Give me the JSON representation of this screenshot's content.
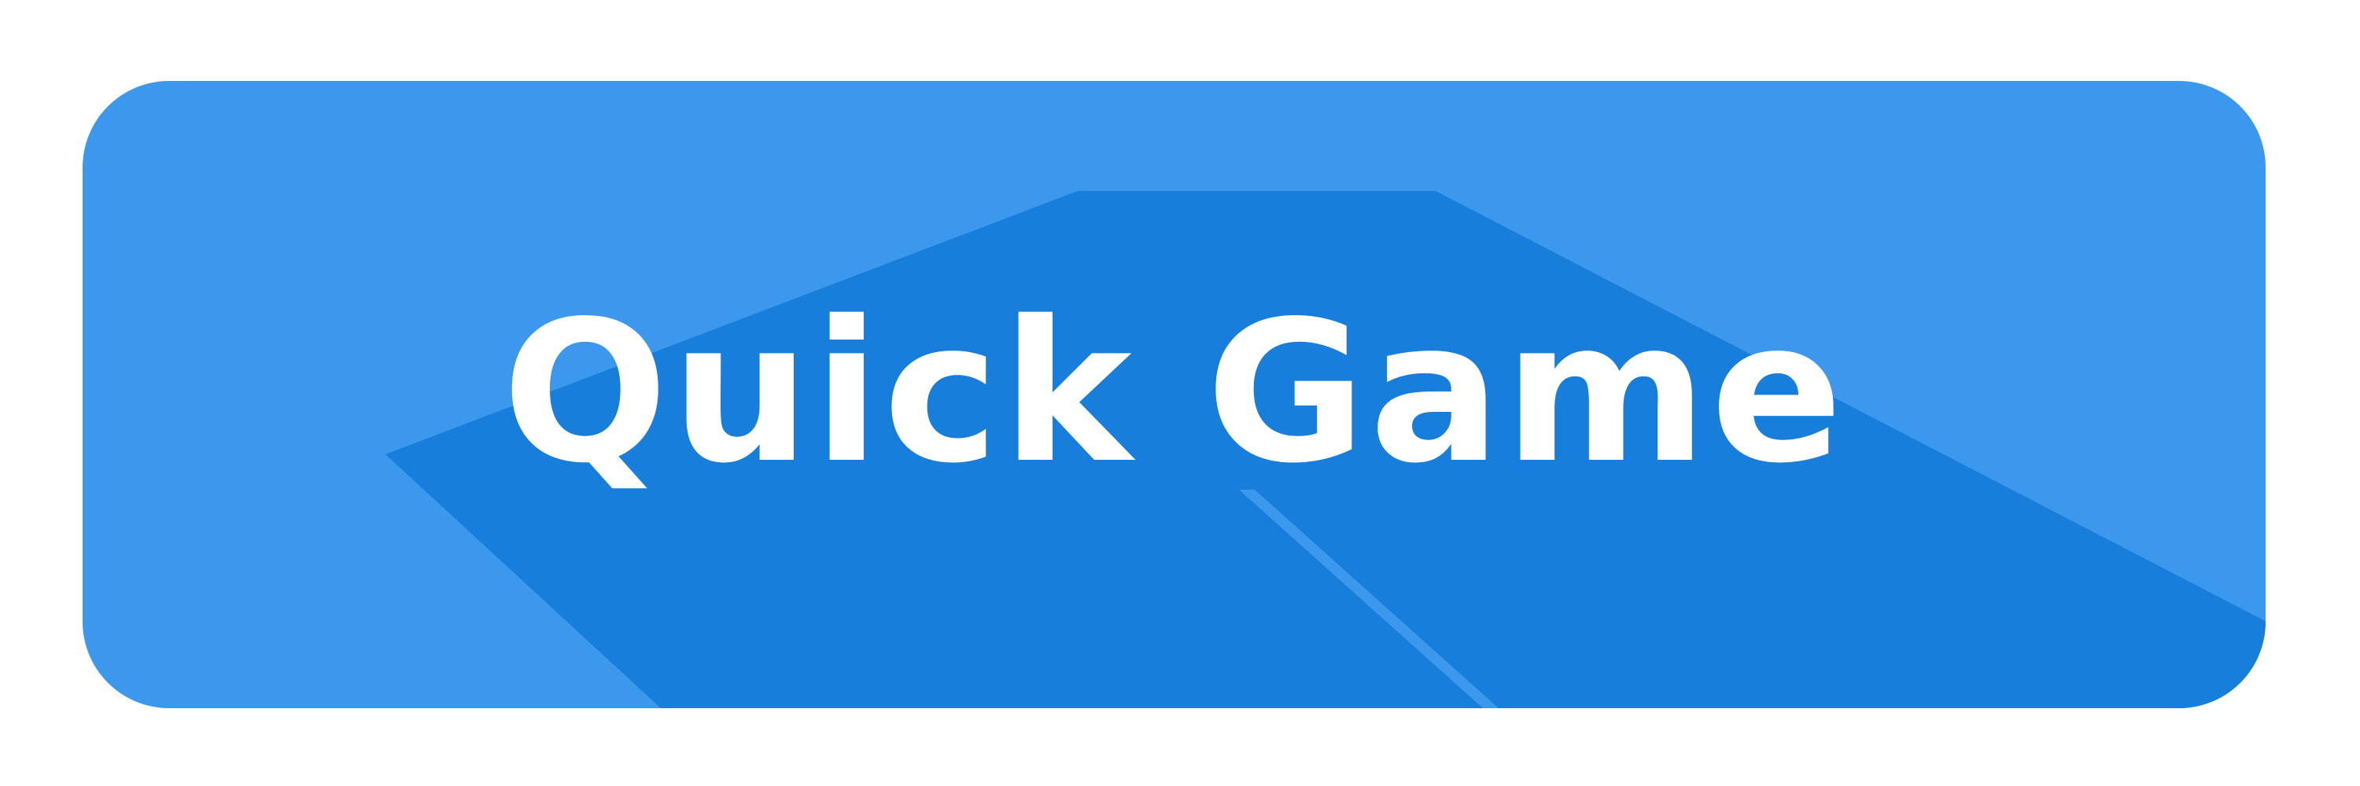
{
  "button": {
    "label": "Quick Game",
    "color": "#3C98EC",
    "long_shadow_color": "#187EDB",
    "text_color": "#FFFFFF"
  }
}
